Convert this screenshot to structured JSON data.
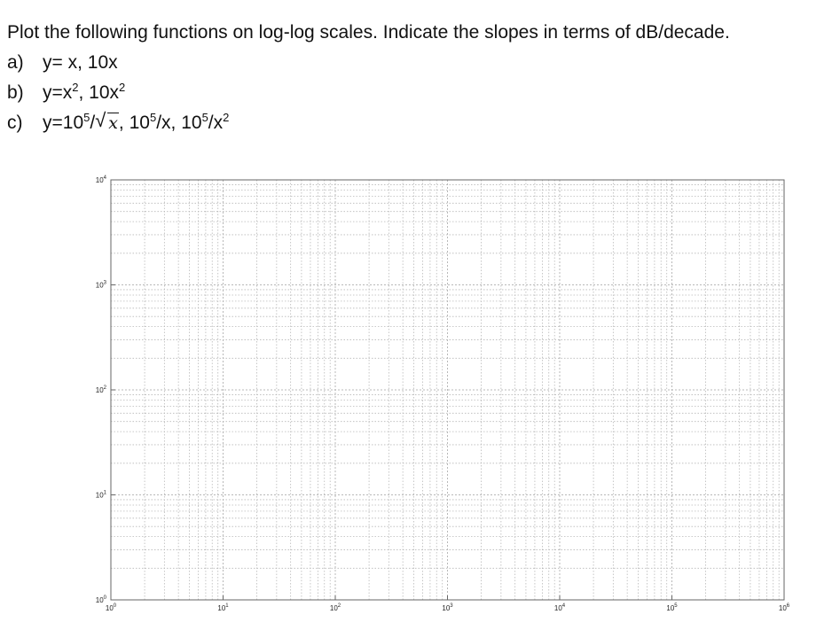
{
  "problem": {
    "stem": "Plot the following functions on log-log scales. Indicate the slopes in terms of dB/decade.",
    "items": [
      {
        "label": "a)",
        "text": "y= x, 10x"
      },
      {
        "label": "b)",
        "text_pre": "y=x",
        "sup1": "2",
        "text_mid": ", 10x",
        "sup2": "2"
      },
      {
        "label": "c)",
        "text_pre": "y=10",
        "sup1": "5",
        "slash1": "/",
        "sqrt_arg": "x",
        "text_mid1": ",  10",
        "sup2": "5",
        "text_mid2": "/x,  10",
        "sup3": "5",
        "text_mid3": "/x",
        "sup4": "2"
      }
    ]
  },
  "chart_data": {
    "type": "log-log grid",
    "x_scale": "log",
    "y_scale": "log",
    "xlim": [
      1,
      1000000
    ],
    "ylim": [
      1,
      10000
    ],
    "x_ticks": [
      {
        "base": "10",
        "exp": "0"
      },
      {
        "base": "10",
        "exp": "1"
      },
      {
        "base": "10",
        "exp": "2"
      },
      {
        "base": "10",
        "exp": "3"
      },
      {
        "base": "10",
        "exp": "4"
      },
      {
        "base": "10",
        "exp": "5"
      },
      {
        "base": "10",
        "exp": "6"
      }
    ],
    "y_ticks": [
      {
        "base": "10",
        "exp": "0"
      },
      {
        "base": "10",
        "exp": "1"
      },
      {
        "base": "10",
        "exp": "2"
      },
      {
        "base": "10",
        "exp": "3"
      },
      {
        "base": "10",
        "exp": "4"
      }
    ],
    "grid": true,
    "minor_grid": true,
    "series": [],
    "grid_color": "#b8b8b8",
    "axis_color": "#666666"
  }
}
